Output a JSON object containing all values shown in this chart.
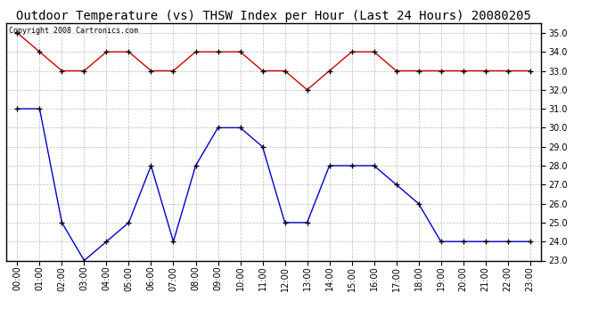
{
  "title": "Outdoor Temperature (vs) THSW Index per Hour (Last 24 Hours) 20080205",
  "copyright": "Copyright 2008 Cartronics.com",
  "hours": [
    "00:00",
    "01:00",
    "02:00",
    "03:00",
    "04:00",
    "05:00",
    "06:00",
    "07:00",
    "08:00",
    "09:00",
    "10:00",
    "11:00",
    "12:00",
    "13:00",
    "14:00",
    "15:00",
    "16:00",
    "17:00",
    "18:00",
    "19:00",
    "20:00",
    "21:00",
    "22:00",
    "23:00"
  ],
  "blue_values": [
    31.0,
    31.0,
    25.0,
    23.0,
    24.0,
    25.0,
    28.0,
    24.0,
    28.0,
    30.0,
    30.0,
    29.0,
    25.0,
    25.0,
    28.0,
    28.0,
    28.0,
    27.0,
    26.0,
    24.0,
    24.0,
    24.0,
    24.0,
    24.0
  ],
  "red_values": [
    35.0,
    34.0,
    33.0,
    33.0,
    34.0,
    34.0,
    33.0,
    33.0,
    34.0,
    34.0,
    34.0,
    33.0,
    33.0,
    32.0,
    33.0,
    34.0,
    34.0,
    33.0,
    33.0,
    33.0,
    33.0,
    33.0,
    33.0,
    33.0
  ],
  "ylim": [
    23.0,
    35.5
  ],
  "yticks": [
    23.0,
    24.0,
    25.0,
    26.0,
    27.0,
    28.0,
    29.0,
    30.0,
    31.0,
    32.0,
    33.0,
    34.0,
    35.0
  ],
  "blue_color": "#0000cc",
  "red_color": "#cc0000",
  "bg_color": "#ffffff",
  "plot_bg_color": "#ffffff",
  "grid_color": "#bbbbbb",
  "title_fontsize": 10,
  "tick_fontsize": 7,
  "copyright_fontsize": 6
}
